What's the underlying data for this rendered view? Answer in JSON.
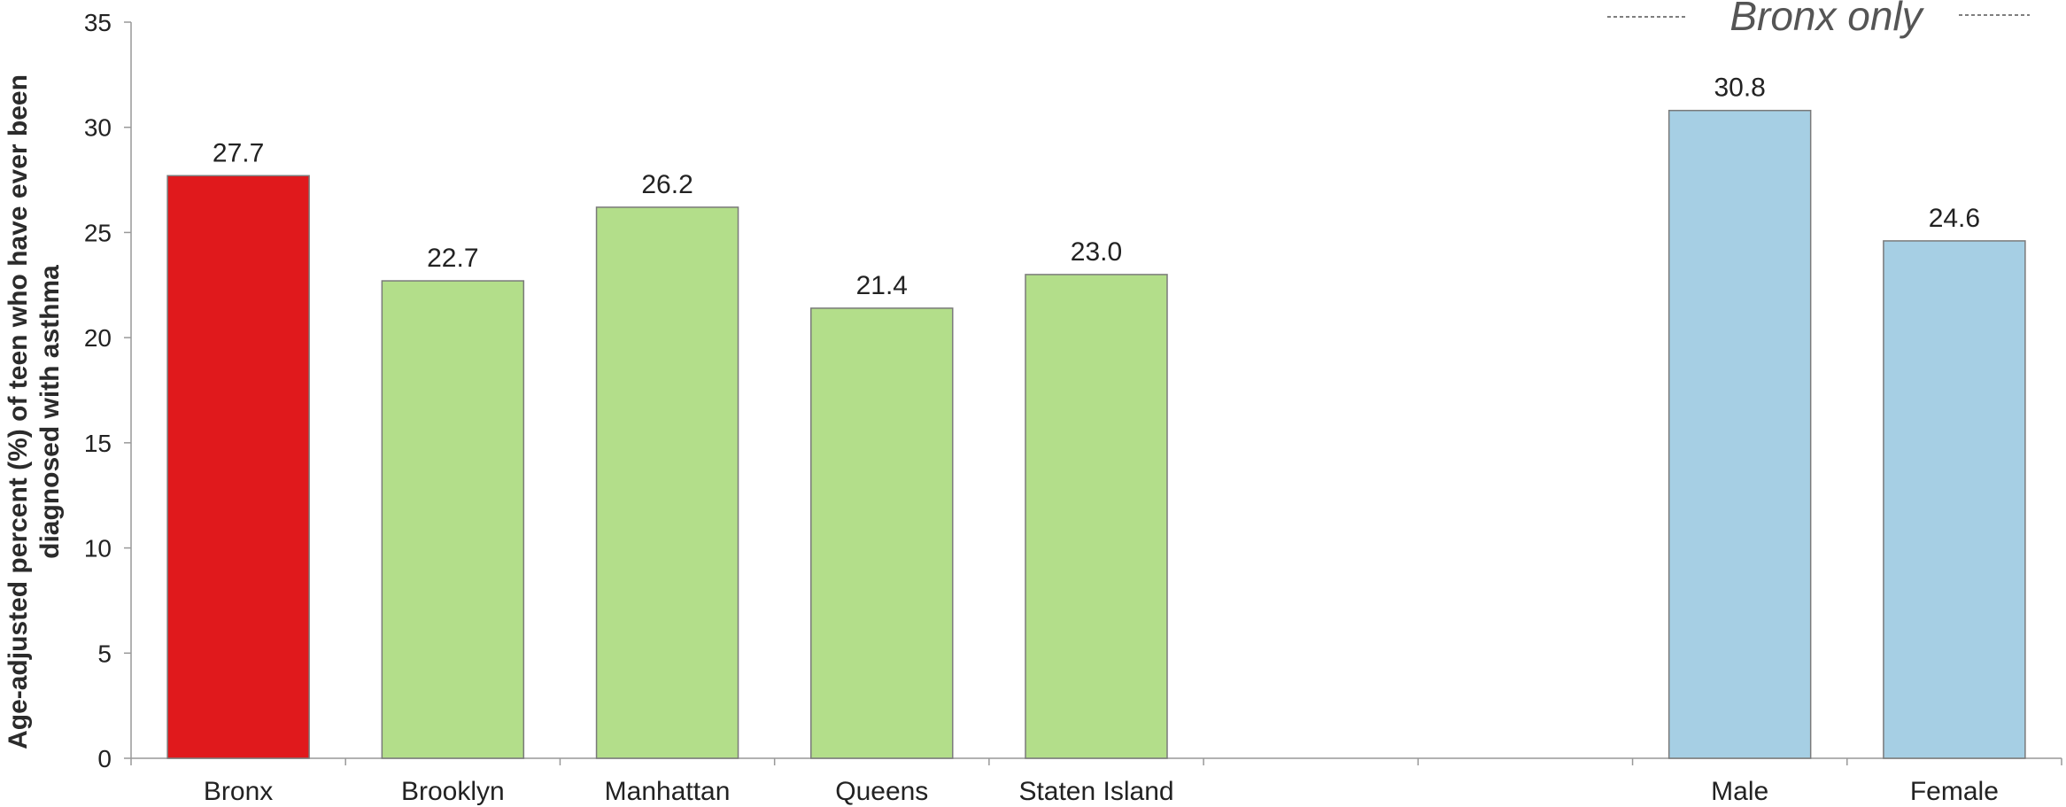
{
  "chart_data": {
    "type": "bar",
    "title": "",
    "xlabel": "",
    "ylabel_lines": [
      "Age-adjusted percent (%) of teen who have ever been",
      "diagnosed with asthma"
    ],
    "ylim": [
      0,
      35
    ],
    "yticks": [
      "0",
      "5",
      "10",
      "15",
      "20",
      "25",
      "30",
      "35"
    ],
    "ytick_values": [
      0,
      5,
      10,
      15,
      20,
      25,
      30,
      35
    ],
    "grid": false,
    "legend": "none",
    "categories": [
      "Bronx",
      "Brooklyn",
      "Manhattan",
      "Queens",
      "Staten Island",
      "",
      "",
      "Male",
      "Female"
    ],
    "values": [
      27.7,
      22.7,
      26.2,
      21.4,
      23.0,
      null,
      null,
      30.8,
      24.6
    ],
    "value_labels": [
      "27.7",
      "22.7",
      "26.2",
      "21.4",
      "23.0",
      "",
      "",
      "30.8",
      "24.6"
    ],
    "bar_colors": [
      "#e0191c",
      "#b3de8a",
      "#b3de8a",
      "#b3de8a",
      "#b3de8a",
      "",
      "",
      "#a6cfe4",
      "#a6cfe4"
    ],
    "bar_outline": "#7a7a7a",
    "axis_color": "#999999",
    "annotation": "Bronx only"
  }
}
